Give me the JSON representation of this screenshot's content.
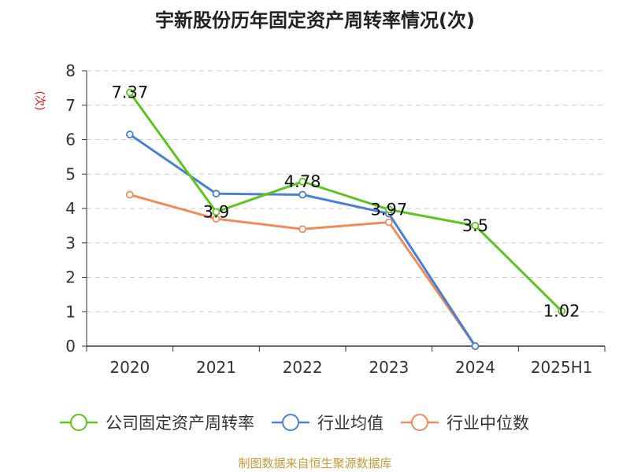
{
  "chart_data": {
    "type": "line",
    "title": "宇新股份历年固定资产周转率情况(次)",
    "ylabel": "(次)",
    "categories": [
      "2020",
      "2021",
      "2022",
      "2023",
      "2024",
      "2025H1"
    ],
    "ylim": [
      0,
      8
    ],
    "yticks": [
      0,
      1,
      2,
      3,
      4,
      5,
      6,
      7,
      8
    ],
    "grid": true,
    "legend_position": "bottom",
    "series": [
      {
        "name": "公司固定资产周转率",
        "color": "#5ec41f",
        "values": [
          7.37,
          3.9,
          4.78,
          3.97,
          3.5,
          1.02
        ],
        "labels": [
          "7.37",
          "3.9",
          "4.78",
          "3.97",
          "3.5",
          "1.02"
        ]
      },
      {
        "name": "行业均值",
        "color": "#4a7fd6",
        "values": [
          6.15,
          4.43,
          4.4,
          3.85,
          0,
          null
        ]
      },
      {
        "name": "行业中位数",
        "color": "#f08c5a",
        "values": [
          4.4,
          3.7,
          3.4,
          3.6,
          0,
          null
        ]
      }
    ]
  },
  "source": "制图数据来自恒生聚源数据库"
}
